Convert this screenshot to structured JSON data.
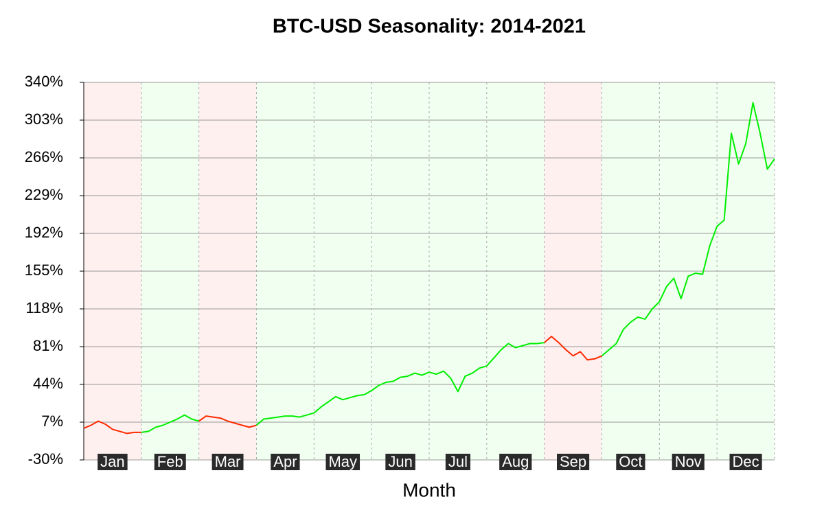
{
  "chart_data": {
    "type": "line",
    "title": "BTC-USD Seasonality: 2014-2021",
    "x_label": "Month",
    "categories": [
      "Jan",
      "Feb",
      "Mar",
      "Apr",
      "May",
      "Jun",
      "Jul",
      "Aug",
      "Sep",
      "Oct",
      "Nov",
      "Dec"
    ],
    "values": [
      [
        1,
        4,
        8,
        5,
        0,
        -2,
        -4,
        -3,
        -3
      ],
      [
        -3,
        -2,
        2,
        4,
        7,
        10,
        14,
        10,
        8
      ],
      [
        8,
        13,
        12,
        11,
        8,
        6,
        4,
        2,
        4
      ],
      [
        4,
        10,
        11,
        12,
        13,
        13,
        12,
        14,
        16
      ],
      [
        16,
        22,
        27,
        32,
        29,
        31,
        33,
        34,
        38
      ],
      [
        38,
        43,
        46,
        47,
        51,
        52,
        55,
        53,
        56
      ],
      [
        56,
        54,
        57,
        50,
        37,
        52,
        55,
        60,
        62
      ],
      [
        62,
        70,
        78,
        84,
        80,
        82,
        84,
        84,
        85
      ],
      [
        85,
        91,
        85,
        78,
        72,
        76,
        68,
        69,
        72
      ],
      [
        72,
        78,
        84,
        98,
        105,
        110,
        108,
        118,
        125
      ],
      [
        125,
        140,
        148,
        128,
        150,
        153,
        152,
        180,
        199
      ],
      [
        199,
        205,
        290,
        260,
        280,
        320,
        290,
        255,
        265
      ]
    ],
    "up_color": "#00ee00",
    "down_color": "#ff2a00",
    "up_band_color": "#f0fff0",
    "down_band_color": "#fff0f0",
    "ylim": [
      -30,
      340
    ],
    "yticks": [
      {
        "value": -30,
        "label": "-30%"
      },
      {
        "value": 7,
        "label": "7%"
      },
      {
        "value": 44,
        "label": "44%"
      },
      {
        "value": 81,
        "label": "81%"
      },
      {
        "value": 118,
        "label": "118%"
      },
      {
        "value": 155,
        "label": "155%"
      },
      {
        "value": 192,
        "label": "192%"
      },
      {
        "value": 229,
        "label": "229%"
      },
      {
        "value": 266,
        "label": "266%"
      },
      {
        "value": 303,
        "label": "303%"
      },
      {
        "value": 340,
        "label": "340%"
      }
    ],
    "grid": true
  }
}
